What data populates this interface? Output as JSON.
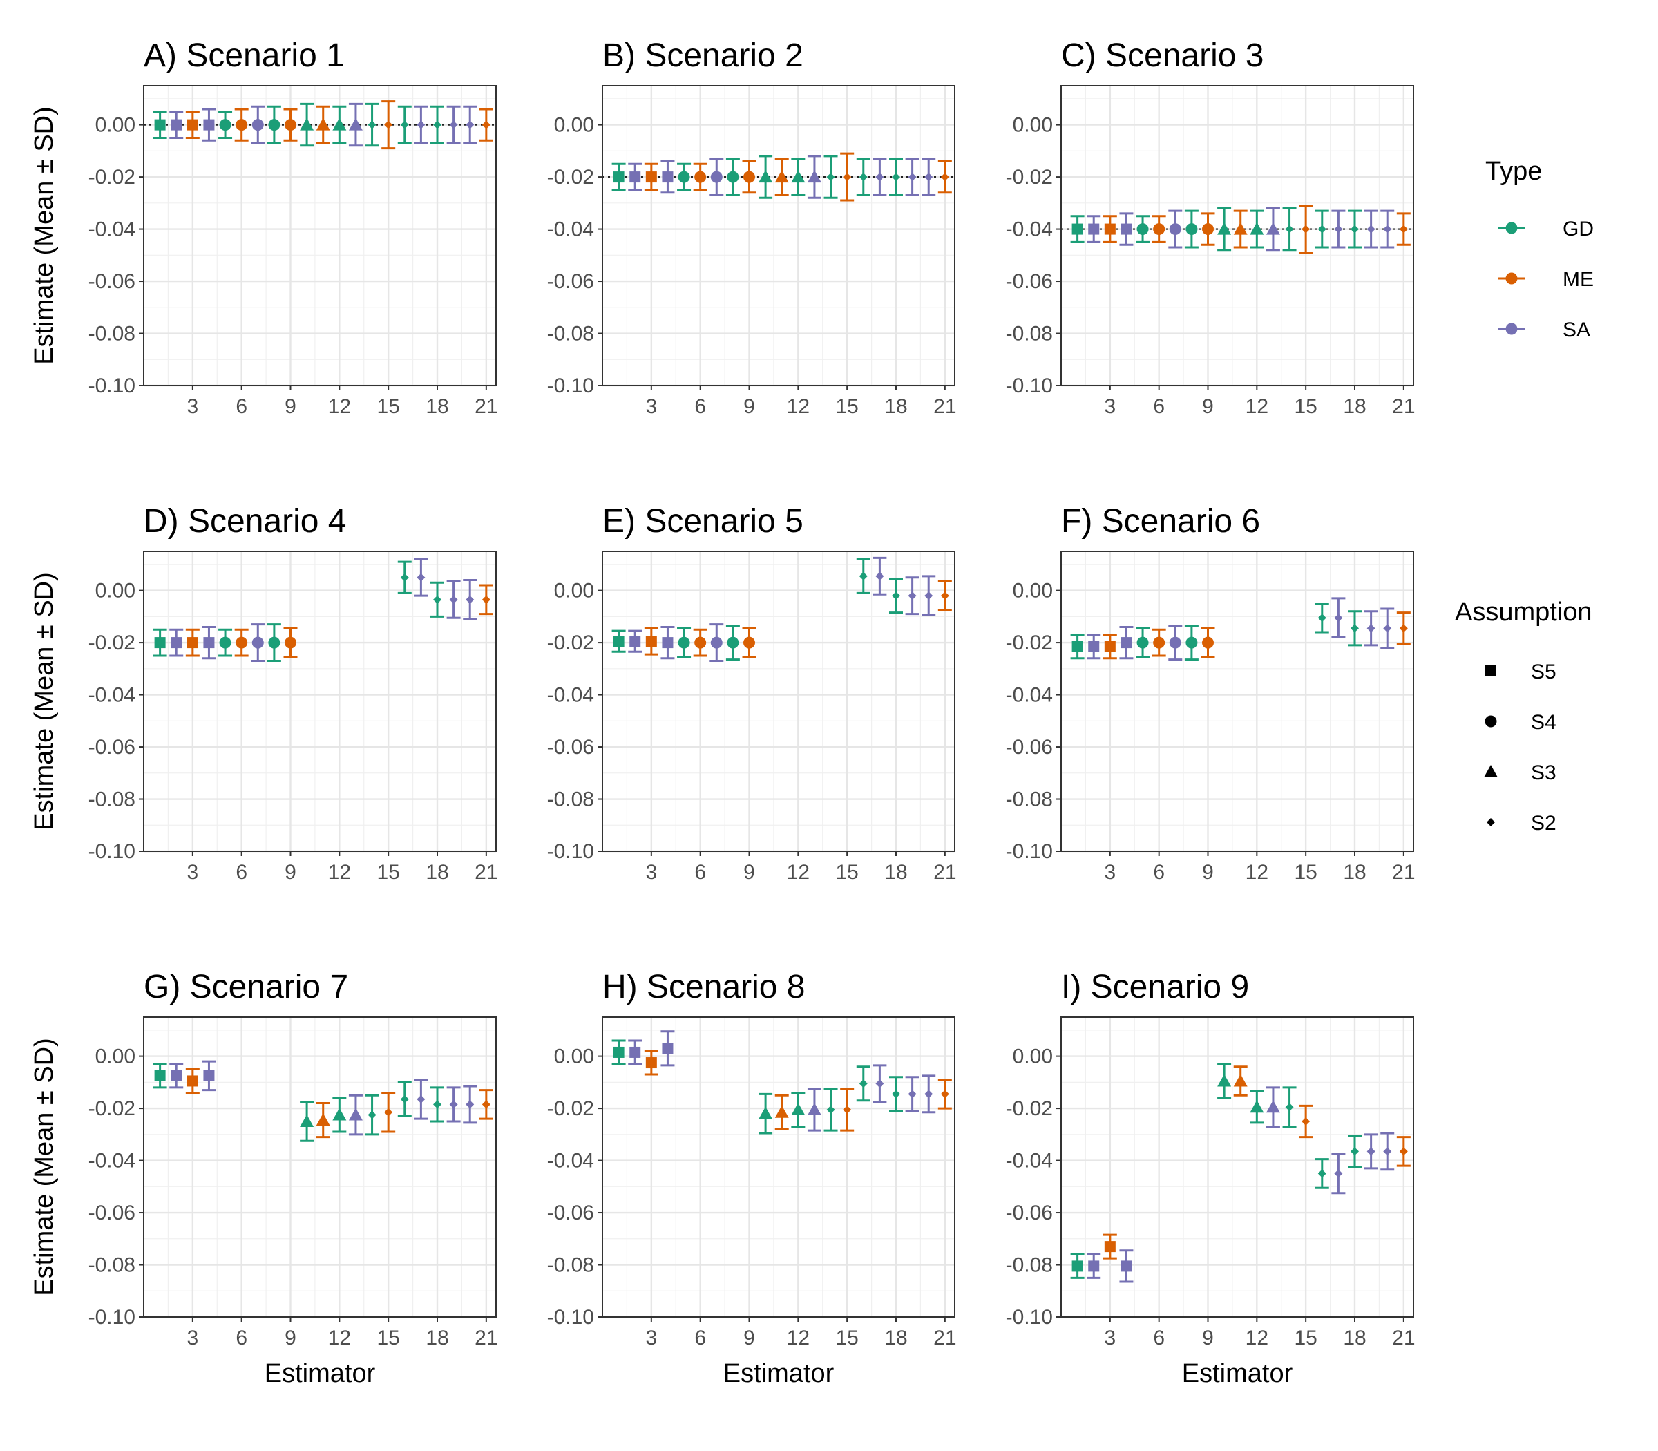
{
  "chart_data": {
    "type": "errorbar",
    "shared": {
      "xlabel": "Estimator",
      "ylabel": "Estimate (Mean ± SD)",
      "xlim": [
        0,
        21.6
      ],
      "ylim": [
        -0.1,
        0.015
      ],
      "xticks": [
        "3",
        "6",
        "9",
        "12",
        "15",
        "18",
        "21"
      ],
      "yticks": [
        "0.00",
        "-0.02",
        "-0.04",
        "-0.06",
        "-0.08",
        "-0.10"
      ],
      "grid": true,
      "estimators": {
        "x": [
          1,
          2,
          3,
          4,
          5,
          6,
          7,
          8,
          9,
          10,
          11,
          12,
          13,
          14,
          15,
          16,
          17,
          18,
          19,
          20,
          21
        ],
        "type": [
          "GD",
          "SA",
          "ME",
          "SA",
          "GD",
          "ME",
          "SA",
          "GD",
          "ME",
          "GD",
          "ME",
          "GD",
          "SA",
          "GD",
          "ME",
          "GD",
          "SA",
          "GD",
          "SA",
          "SA",
          "ME"
        ],
        "assumption": [
          "S5",
          "S5",
          "S5",
          "S5",
          "S4",
          "S4",
          "S4",
          "S4",
          "S4",
          "S3",
          "S3",
          "S3",
          "S3",
          "S2",
          "S2",
          "S2",
          "S2",
          "S2",
          "S2",
          "S2",
          "S2"
        ]
      }
    },
    "legend": {
      "type_title": "Type",
      "types": [
        {
          "label": "GD",
          "color": "#1b9e77"
        },
        {
          "label": "ME",
          "color": "#d95f02"
        },
        {
          "label": "SA",
          "color": "#7570b3"
        }
      ],
      "assumption_title": "Assumption",
      "assumptions": [
        {
          "label": "S5",
          "shape": "square"
        },
        {
          "label": "S4",
          "shape": "circle"
        },
        {
          "label": "S3",
          "shape": "triangle"
        },
        {
          "label": "S2",
          "shape": "diamond"
        }
      ]
    },
    "panels": [
      {
        "title": "A) Scenario 1",
        "reference": 0.0,
        "means": [
          0,
          0,
          0,
          0,
          0,
          0,
          0,
          0,
          0,
          0,
          0,
          0,
          0,
          0,
          0,
          0,
          0,
          0,
          0,
          0,
          0
        ],
        "sds": [
          0.005,
          0.005,
          0.005,
          0.006,
          0.005,
          0.006,
          0.007,
          0.007,
          0.006,
          0.008,
          0.007,
          0.007,
          0.008,
          0.008,
          0.009,
          0.007,
          0.007,
          0.007,
          0.007,
          0.007,
          0.006
        ]
      },
      {
        "title": "B) Scenario 2",
        "reference": -0.02,
        "means": [
          -0.02,
          -0.02,
          -0.02,
          -0.02,
          -0.02,
          -0.02,
          -0.02,
          -0.02,
          -0.02,
          -0.02,
          -0.02,
          -0.02,
          -0.02,
          -0.02,
          -0.02,
          -0.02,
          -0.02,
          -0.02,
          -0.02,
          -0.02,
          -0.02
        ],
        "sds": [
          0.005,
          0.005,
          0.005,
          0.006,
          0.005,
          0.005,
          0.007,
          0.007,
          0.006,
          0.008,
          0.007,
          0.007,
          0.008,
          0.008,
          0.009,
          0.007,
          0.007,
          0.007,
          0.007,
          0.007,
          0.006
        ]
      },
      {
        "title": "C) Scenario 3",
        "reference": -0.04,
        "means": [
          -0.04,
          -0.04,
          -0.04,
          -0.04,
          -0.04,
          -0.04,
          -0.04,
          -0.04,
          -0.04,
          -0.04,
          -0.04,
          -0.04,
          -0.04,
          -0.04,
          -0.04,
          -0.04,
          -0.04,
          -0.04,
          -0.04,
          -0.04,
          -0.04
        ],
        "sds": [
          0.005,
          0.005,
          0.005,
          0.006,
          0.005,
          0.005,
          0.007,
          0.007,
          0.006,
          0.008,
          0.007,
          0.007,
          0.008,
          0.008,
          0.009,
          0.007,
          0.007,
          0.007,
          0.007,
          0.007,
          0.006
        ]
      },
      {
        "title": "D) Scenario 4",
        "reference": null,
        "means": [
          -0.02,
          -0.02,
          -0.02,
          -0.02,
          -0.02,
          -0.02,
          -0.02,
          -0.02,
          -0.02,
          null,
          null,
          null,
          null,
          null,
          null,
          0.005,
          0.005,
          -0.0035,
          -0.0035,
          -0.0035,
          -0.0035
        ],
        "sds": [
          0.005,
          0.005,
          0.005,
          0.006,
          0.005,
          0.005,
          0.007,
          0.007,
          0.0055,
          null,
          null,
          null,
          null,
          null,
          null,
          0.006,
          0.007,
          0.0065,
          0.007,
          0.0075,
          0.0055
        ]
      },
      {
        "title": "E) Scenario 5",
        "reference": null,
        "means": [
          -0.0195,
          -0.0195,
          -0.0195,
          -0.02,
          -0.02,
          -0.02,
          -0.02,
          -0.02,
          -0.02,
          null,
          null,
          null,
          null,
          null,
          null,
          0.0055,
          0.0055,
          -0.002,
          -0.002,
          -0.002,
          -0.002
        ],
        "sds": [
          0.004,
          0.004,
          0.005,
          0.006,
          0.0055,
          0.005,
          0.007,
          0.0065,
          0.0055,
          null,
          null,
          null,
          null,
          null,
          null,
          0.0065,
          0.007,
          0.0065,
          0.007,
          0.0075,
          0.0055
        ]
      },
      {
        "title": "F) Scenario 6",
        "reference": null,
        "means": [
          -0.0215,
          -0.0215,
          -0.0215,
          -0.02,
          -0.02,
          -0.02,
          -0.02,
          -0.02,
          -0.02,
          null,
          null,
          null,
          null,
          null,
          null,
          -0.0105,
          -0.0105,
          -0.0145,
          -0.0145,
          -0.0145,
          -0.0145
        ],
        "sds": [
          0.0045,
          0.0045,
          0.0045,
          0.006,
          0.0055,
          0.005,
          0.0065,
          0.0065,
          0.0055,
          null,
          null,
          null,
          null,
          null,
          null,
          0.0055,
          0.0075,
          0.0065,
          0.0065,
          0.0075,
          0.006
        ]
      },
      {
        "title": "G) Scenario 7",
        "reference": null,
        "means": [
          -0.0075,
          -0.0075,
          -0.0095,
          -0.0075,
          null,
          null,
          null,
          null,
          null,
          -0.025,
          -0.0245,
          -0.0225,
          -0.0225,
          -0.0225,
          -0.0215,
          -0.0165,
          -0.0165,
          -0.0185,
          -0.0185,
          -0.0185,
          -0.0185
        ],
        "sds": [
          0.0045,
          0.0045,
          0.0045,
          0.0055,
          null,
          null,
          null,
          null,
          null,
          0.0075,
          0.0065,
          0.0065,
          0.0075,
          0.0075,
          0.0075,
          0.0065,
          0.0075,
          0.0065,
          0.0065,
          0.007,
          0.0055
        ]
      },
      {
        "title": "H) Scenario 8",
        "reference": null,
        "means": [
          0.0015,
          0.0015,
          -0.0025,
          0.003,
          null,
          null,
          null,
          null,
          null,
          -0.022,
          -0.0215,
          -0.0205,
          -0.0205,
          -0.0205,
          -0.0205,
          -0.0105,
          -0.0105,
          -0.0145,
          -0.0145,
          -0.0145,
          -0.0145
        ],
        "sds": [
          0.0045,
          0.0045,
          0.0045,
          0.0065,
          null,
          null,
          null,
          null,
          null,
          0.0075,
          0.0065,
          0.0065,
          0.008,
          0.008,
          0.008,
          0.0065,
          0.007,
          0.0065,
          0.0065,
          0.007,
          0.0055
        ]
      },
      {
        "title": "I) Scenario 9",
        "reference": null,
        "means": [
          -0.0805,
          -0.0805,
          -0.073,
          -0.0805,
          null,
          null,
          null,
          null,
          null,
          -0.0095,
          -0.0095,
          -0.0195,
          -0.0195,
          -0.0195,
          -0.025,
          -0.045,
          -0.045,
          -0.0365,
          -0.0365,
          -0.0365,
          -0.0365
        ],
        "sds": [
          0.0045,
          0.0045,
          0.0045,
          0.006,
          null,
          null,
          null,
          null,
          null,
          0.0065,
          0.0055,
          0.006,
          0.0075,
          0.0075,
          0.006,
          0.0055,
          0.0075,
          0.006,
          0.0065,
          0.007,
          0.0055
        ]
      }
    ]
  }
}
